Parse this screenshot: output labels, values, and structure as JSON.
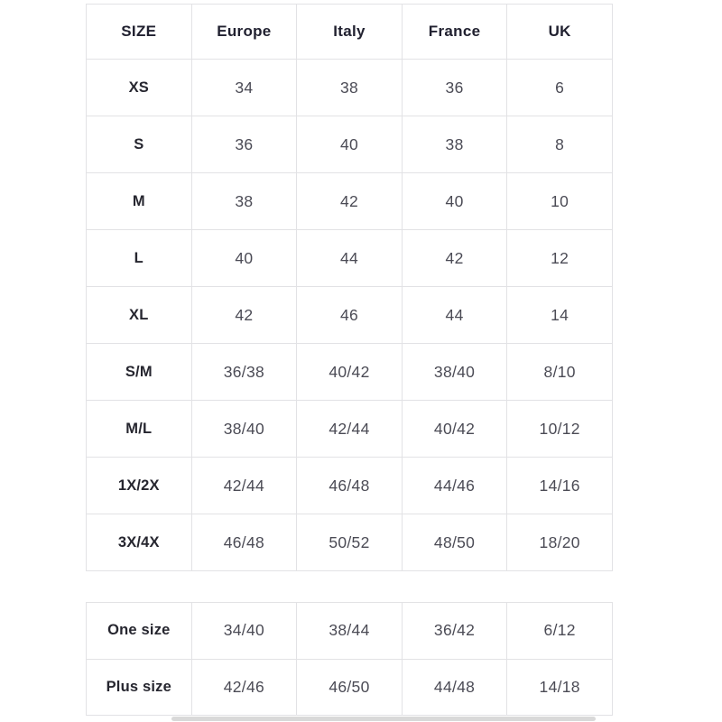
{
  "colors": {
    "page_bg": "#ffffff",
    "border": "#e2e2e5",
    "header_text": "#212130",
    "row_label_text": "#26262f",
    "value_text": "#4b4b55",
    "scrollbar_thumb": "#d9d9d9"
  },
  "chart_data": [
    {
      "type": "table",
      "columns": [
        "SIZE",
        "Europe",
        "Italy",
        "France",
        "UK"
      ],
      "rows": [
        [
          "XS",
          "34",
          "38",
          "36",
          "6"
        ],
        [
          "S",
          "36",
          "40",
          "38",
          "8"
        ],
        [
          "M",
          "38",
          "42",
          "40",
          "10"
        ],
        [
          "L",
          "40",
          "44",
          "42",
          "12"
        ],
        [
          "XL",
          "42",
          "46",
          "44",
          "14"
        ],
        [
          "S/M",
          "36/38",
          "40/42",
          "38/40",
          "8/10"
        ],
        [
          "M/L",
          "38/40",
          "42/44",
          "40/42",
          "10/12"
        ],
        [
          "1X/2X",
          "42/44",
          "46/48",
          "44/46",
          "14/16"
        ],
        [
          "3X/4X",
          "46/48",
          "50/52",
          "48/50",
          "18/20"
        ]
      ]
    },
    {
      "type": "table",
      "rows": [
        [
          "One size",
          "34/40",
          "38/44",
          "36/42",
          "6/12"
        ],
        [
          "Plus size",
          "42/46",
          "46/50",
          "44/48",
          "14/18"
        ]
      ]
    }
  ]
}
